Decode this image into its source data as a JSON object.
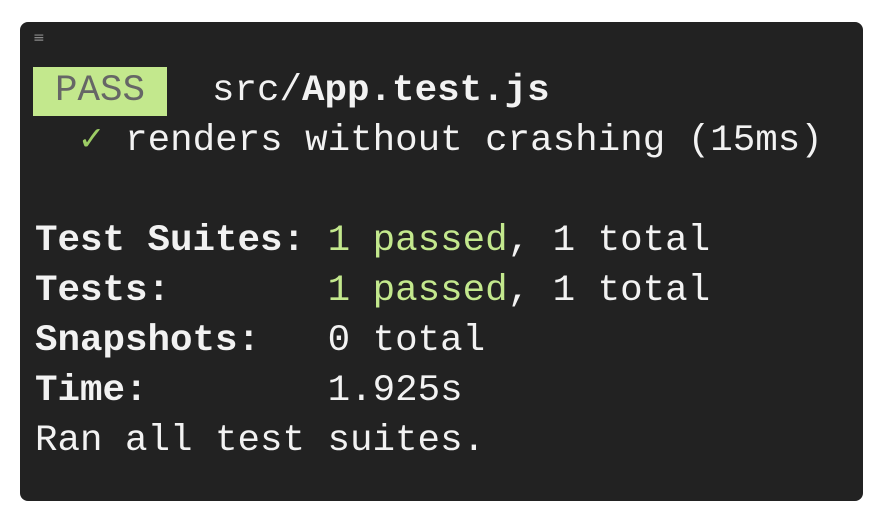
{
  "window": {
    "menu_icon": "hamburger-menu-icon"
  },
  "header": {
    "badge": "PASS",
    "path_dir": "src/",
    "path_file": "App.test.js"
  },
  "test": {
    "check_icon": "✓",
    "name": "renders without crashing (15ms)"
  },
  "summary": {
    "suites_label": "Test Suites: ",
    "suites_passed": "1 passed",
    "suites_total": ", 1 total",
    "tests_label": "Tests:       ",
    "tests_passed": "1 passed",
    "tests_total": ", 1 total",
    "snapshots_label": "Snapshots:   ",
    "snapshots_value": "0 total",
    "time_label": "Time:        ",
    "time_value": "1.925s",
    "footer": "Ran all test suites."
  },
  "colors": {
    "background": "#222222",
    "pass": "#c3e88d",
    "text": "#f2f2f2"
  }
}
